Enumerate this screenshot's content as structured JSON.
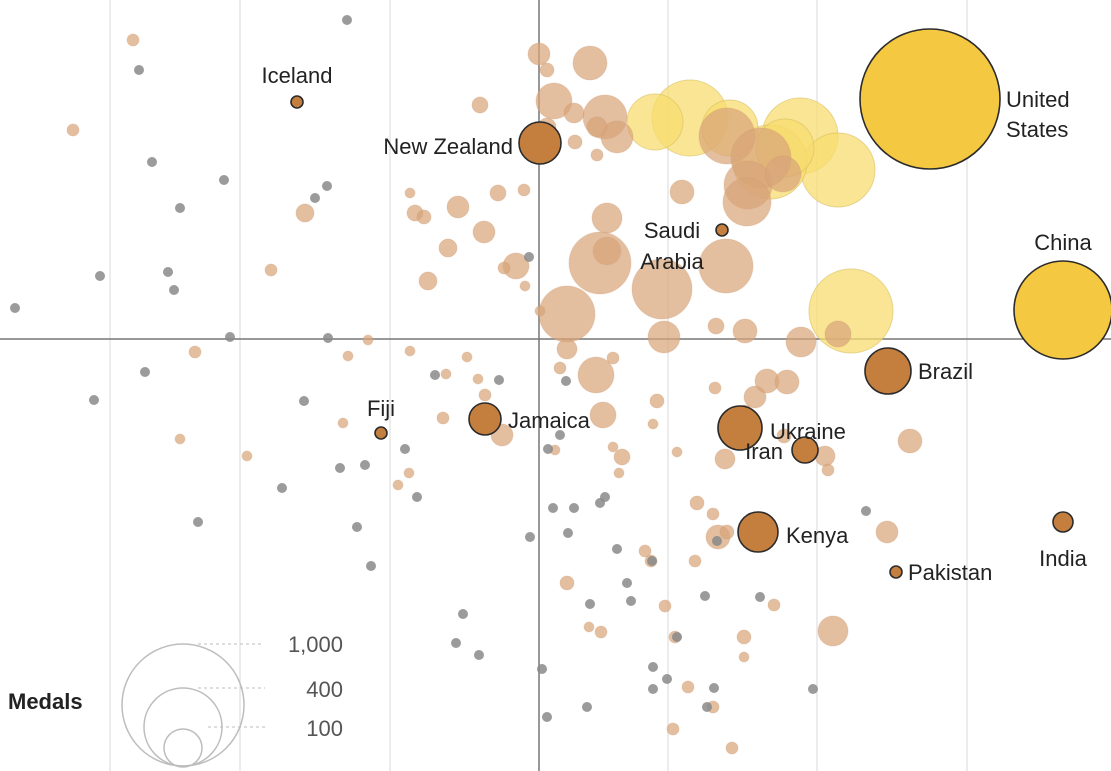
{
  "colors": {
    "gold": "#f5c842",
    "gold_faded": "#f7dc6f",
    "bronze": "#c47f3f",
    "bronze_faded": "#d8a57a",
    "grey": "#8a8a8a",
    "outline": "#2b2b2b",
    "axis": "#777777",
    "grid": "#d9d9d9",
    "legend": "#bdbdbd"
  },
  "chart_data": {
    "type": "scatter",
    "grid": true,
    "legend_placement": "bottom-left",
    "size_legend": {
      "title": "Medals",
      "labels": [
        "1,000",
        "400",
        "100"
      ]
    },
    "labeled_countries": [
      {
        "name": "United States",
        "label_lines": [
          "United",
          "States"
        ],
        "size": "very large",
        "group": "gold"
      },
      {
        "name": "China",
        "label_lines": [
          "China"
        ],
        "size": "large",
        "group": "gold"
      },
      {
        "name": "New Zealand",
        "label_lines": [
          "New Zealand"
        ],
        "size": "medium",
        "group": "bronze"
      },
      {
        "name": "Brazil",
        "label_lines": [
          "Brazil"
        ],
        "size": "medium",
        "group": "bronze"
      },
      {
        "name": "Ukraine",
        "label_lines": [
          "Ukraine"
        ],
        "size": "medium",
        "group": "bronze"
      },
      {
        "name": "Kenya",
        "label_lines": [
          "Kenya"
        ],
        "size": "medium",
        "group": "bronze"
      },
      {
        "name": "Jamaica",
        "label_lines": [
          "Jamaica"
        ],
        "size": "small",
        "group": "bronze"
      },
      {
        "name": "Iran",
        "label_lines": [
          "Iran"
        ],
        "size": "small",
        "group": "bronze"
      },
      {
        "name": "Iceland",
        "label_lines": [
          "Iceland"
        ],
        "size": "tiny",
        "group": "bronze"
      },
      {
        "name": "Saudi Arabia",
        "label_lines": [
          "Saudi",
          "Arabia"
        ],
        "size": "tiny",
        "group": "bronze"
      },
      {
        "name": "Fiji",
        "label_lines": [
          "Fiji"
        ],
        "size": "tiny",
        "group": "bronze"
      },
      {
        "name": "Pakistan",
        "label_lines": [
          "Pakistan"
        ],
        "size": "tiny",
        "group": "bronze"
      },
      {
        "name": "India",
        "label_lines": [
          "India"
        ],
        "size": "tiny",
        "group": "bronze"
      }
    ],
    "background_points": {
      "gold": 8,
      "bronze": 130,
      "grey": 80
    }
  }
}
